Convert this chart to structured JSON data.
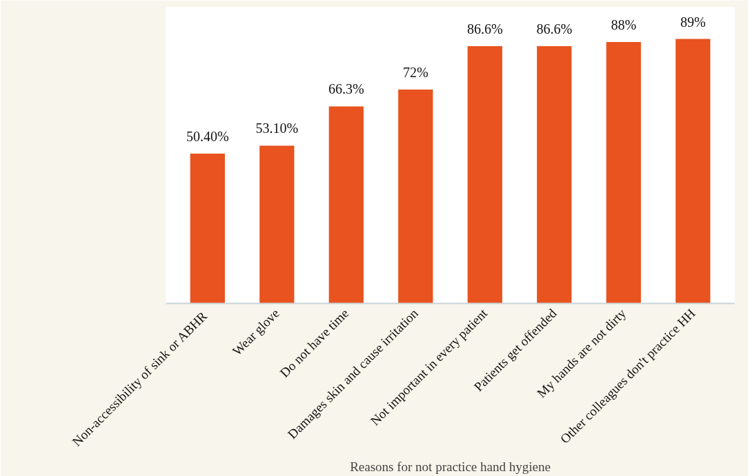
{
  "chart_data": {
    "type": "bar",
    "xlabel": "Reasons for not practice hand hygiene",
    "categories": [
      "Non-accessibility of sink or  ABHR",
      "Wear glove",
      "Do not have time",
      "Damages skin and cause irritation",
      "Not important in every patient",
      "Patients get offended",
      "My hands are not dirty",
      "Other colleagues don't practice HH"
    ],
    "values": [
      50.4,
      53.1,
      66.3,
      72,
      86.6,
      86.6,
      88,
      89
    ],
    "value_labels": [
      "50.40%",
      "53.10%",
      "66.3%",
      "72%",
      "86.6%",
      "86.6%",
      "88%",
      "89%"
    ],
    "color": "#e8531f",
    "tick_labels": "x"
  }
}
